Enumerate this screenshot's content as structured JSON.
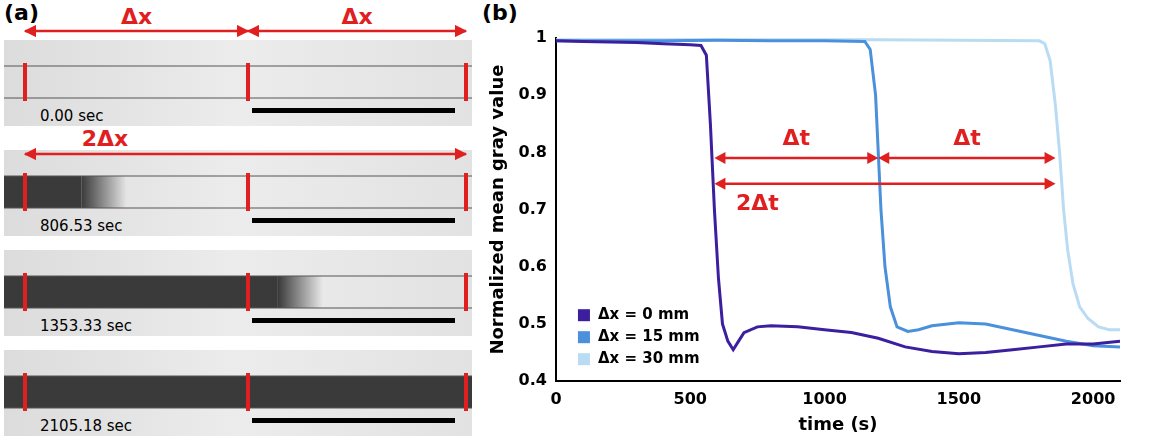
{
  "panel_a": {
    "panel_label": "(a)",
    "spacing_labels": [
      "Δx",
      "Δx"
    ],
    "span_label": "2Δx",
    "frames": [
      {
        "time": "0.00 sec"
      },
      {
        "time": "806.53 sec"
      },
      {
        "time": "1353.33 sec"
      },
      {
        "time": "2105.18 sec"
      }
    ]
  },
  "chart_data": {
    "panel_label": "(b)",
    "type": "line",
    "x_label": "time (s)",
    "y_label": "Normalized mean gray value",
    "xlim": [
      0,
      2100
    ],
    "xticks": [
      0,
      500,
      1000,
      1500,
      2000
    ],
    "ylim": [
      0.4,
      1
    ],
    "yticks": [
      0.4,
      0.5,
      0.6,
      0.7,
      0.8,
      0.9,
      1
    ],
    "grid": false,
    "legend": "lower left",
    "series": [
      {
        "name": "Δx = 0 mm",
        "color": "#3b1f9f",
        "x": [
          0,
          100,
          200,
          300,
          400,
          500,
          540,
          560,
          575,
          590,
          605,
          620,
          640,
          660,
          680,
          700,
          750,
          800,
          900,
          1000,
          1100,
          1200,
          1300,
          1400,
          1500,
          1600,
          1700,
          1800,
          1900,
          2000,
          2100
        ],
        "values": [
          0.995,
          0.994,
          0.993,
          0.992,
          0.99,
          0.988,
          0.987,
          0.97,
          0.85,
          0.7,
          0.58,
          0.5,
          0.47,
          0.455,
          0.47,
          0.485,
          0.495,
          0.497,
          0.495,
          0.49,
          0.485,
          0.475,
          0.46,
          0.452,
          0.448,
          0.45,
          0.455,
          0.46,
          0.465,
          0.465,
          0.47
        ]
      },
      {
        "name": "Δx = 15 mm",
        "color": "#4a90dc",
        "x": [
          0,
          200,
          400,
          600,
          800,
          1000,
          1150,
          1170,
          1190,
          1200,
          1210,
          1225,
          1245,
          1270,
          1310,
          1350,
          1400,
          1500,
          1600,
          1700,
          1800,
          1900,
          2000,
          2100
        ],
        "values": [
          0.995,
          0.995,
          0.995,
          0.996,
          0.995,
          0.995,
          0.994,
          0.98,
          0.9,
          0.8,
          0.7,
          0.6,
          0.53,
          0.495,
          0.487,
          0.49,
          0.497,
          0.502,
          0.5,
          0.49,
          0.48,
          0.47,
          0.462,
          0.46
        ]
      },
      {
        "name": "Δx = 30 mm",
        "color": "#b9dcf4",
        "x": [
          0,
          300,
          600,
          900,
          1200,
          1500,
          1800,
          1820,
          1840,
          1860,
          1875,
          1890,
          1905,
          1925,
          1950,
          1980,
          2020,
          2060,
          2100
        ],
        "values": [
          0.997,
          0.997,
          0.997,
          0.997,
          0.997,
          0.996,
          0.995,
          0.99,
          0.96,
          0.88,
          0.8,
          0.7,
          0.63,
          0.57,
          0.53,
          0.51,
          0.495,
          0.49,
          0.49
        ]
      }
    ],
    "annotations": [
      {
        "text": "Δt",
        "x": [
          590,
          1200
        ],
        "y": 0.79
      },
      {
        "text": "Δt",
        "x": [
          1200,
          1860
        ],
        "y": 0.79
      },
      {
        "text": "2Δt",
        "x": [
          590,
          1860
        ],
        "y": 0.745
      }
    ]
  }
}
